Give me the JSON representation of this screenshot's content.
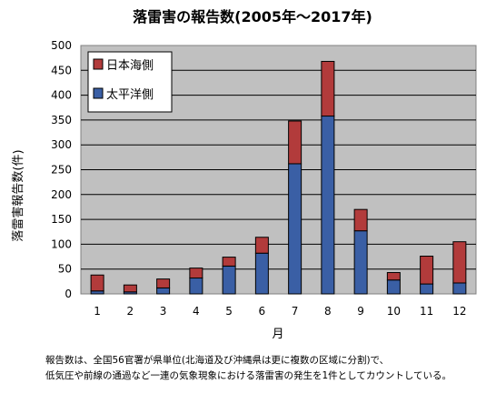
{
  "chart_data": {
    "type": "bar",
    "stacked": true,
    "title": "落雷害の報告数(2005年～2017年)",
    "xlabel": "月",
    "ylabel": "落雷害報告数(件)",
    "categories": [
      "1",
      "2",
      "3",
      "4",
      "5",
      "6",
      "7",
      "8",
      "9",
      "10",
      "11",
      "12"
    ],
    "series": [
      {
        "name": "太平洋側",
        "color": "#3a5fa5",
        "values": [
          6,
          4,
          12,
          32,
          56,
          82,
          262,
          358,
          127,
          28,
          20,
          22
        ]
      },
      {
        "name": "日本海側",
        "color": "#b23b3b",
        "values": [
          32,
          14,
          18,
          20,
          18,
          32,
          86,
          110,
          43,
          15,
          56,
          83
        ]
      }
    ],
    "ylim": [
      0,
      500
    ],
    "yticks": [
      0,
      50,
      100,
      150,
      200,
      250,
      300,
      350,
      400,
      450,
      500
    ],
    "grid": true,
    "plot_background": "#c0c0c0",
    "legend_position": "top-left",
    "legend_order": [
      "日本海側",
      "太平洋側"
    ]
  },
  "note": {
    "line1": "報告数は、全国56官署が県単位(北海道及び沖縄県は更に複数の区域に分割)で、",
    "line2": "低気圧や前線の通過など一連の気象現象における落雷害の発生を1件としてカウントしている。"
  }
}
